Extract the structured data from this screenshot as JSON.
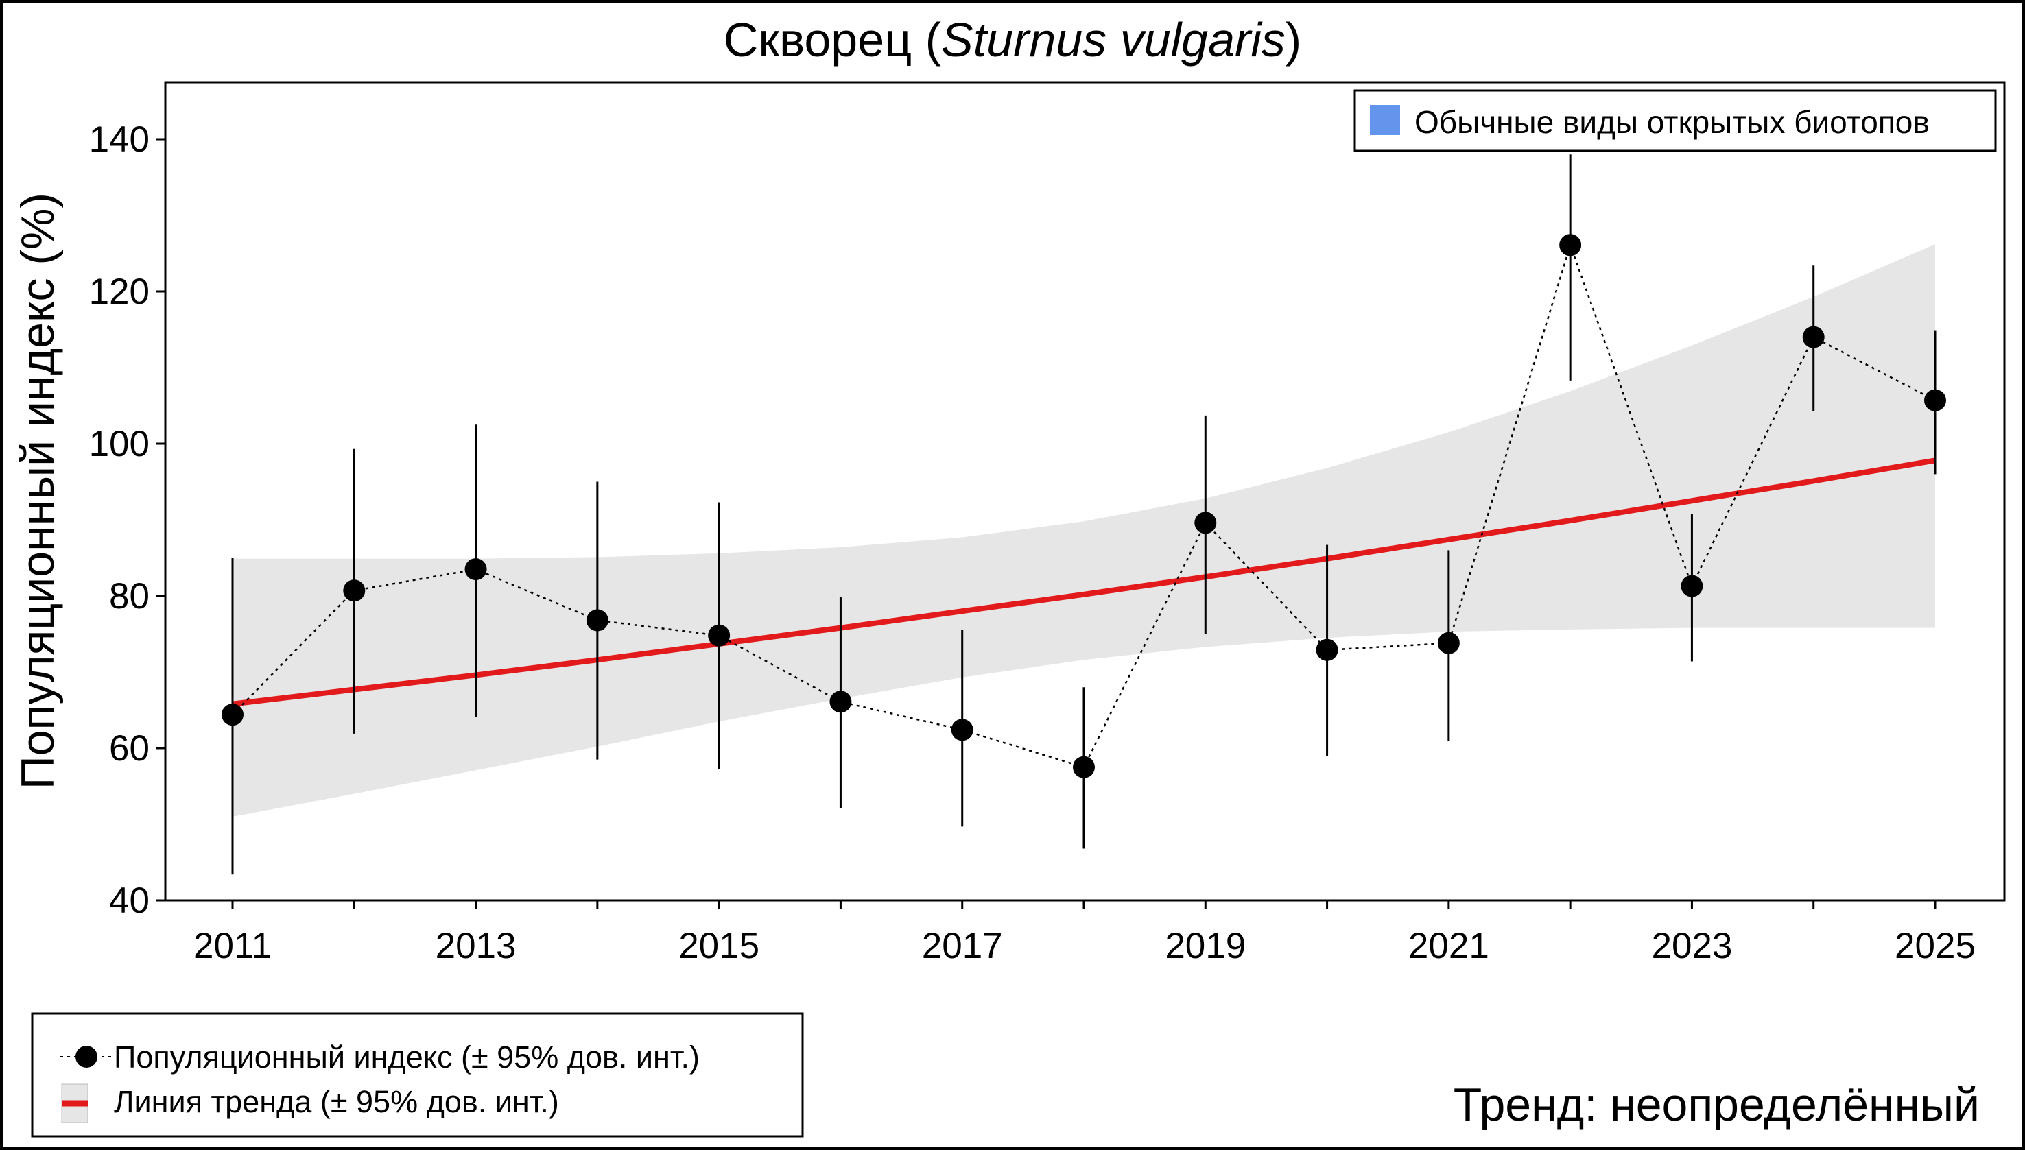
{
  "chart_data": {
    "type": "line",
    "title_main": "Скворец (",
    "title_italic": "Sturnus vulgaris",
    "title_end": ")",
    "ylabel": "Популяционный индекс (%)",
    "xlabel": "",
    "xlim": [
      2011,
      2025
    ],
    "ylim": [
      40,
      140
    ],
    "yticks": [
      40,
      60,
      80,
      100,
      120,
      140
    ],
    "xtick_labels": [
      2011,
      2013,
      2015,
      2017,
      2019,
      2021,
      2023,
      2025
    ],
    "grid": false,
    "x": [
      2011,
      2012,
      2013,
      2014,
      2015,
      2016,
      2017,
      2018,
      2019,
      2020,
      2021,
      2022,
      2023,
      2024,
      2025
    ],
    "index": [
      64.4,
      80.7,
      83.5,
      76.8,
      74.8,
      66.1,
      62.4,
      57.5,
      89.6,
      72.9,
      73.8,
      126.1,
      81.3,
      114.0,
      105.7
    ],
    "ci_upper": [
      85.0,
      99.3,
      102.5,
      95.0,
      92.3,
      79.9,
      75.5,
      68.0,
      103.7,
      86.7,
      86.0,
      138.3,
      90.8,
      123.4,
      114.9
    ],
    "ci_lower": [
      43.4,
      61.9,
      64.1,
      58.5,
      57.3,
      52.1,
      49.7,
      46.8,
      75.0,
      59.0,
      60.9,
      108.3,
      71.4,
      104.3,
      96.0
    ],
    "trend": [
      65.8,
      67.7,
      69.6,
      71.6,
      73.7,
      75.8,
      78.0,
      80.2,
      82.5,
      84.9,
      87.4,
      89.9,
      92.5,
      95.1,
      97.8
    ],
    "trend_upper": [
      84.9,
      84.9,
      84.9,
      85.1,
      85.6,
      86.4,
      87.7,
      89.8,
      92.8,
      96.8,
      101.5,
      106.9,
      112.9,
      119.3,
      126.2
    ],
    "trend_lower": [
      51.0,
      54.0,
      57.1,
      60.2,
      63.5,
      66.5,
      69.3,
      71.6,
      73.3,
      74.5,
      75.3,
      75.6,
      75.8,
      75.8,
      75.8
    ],
    "colors": {
      "index": "#000000",
      "trend": "#e31a1c",
      "band": "#e6e6e6",
      "group": "#6495ed"
    },
    "group_legend": {
      "label": "Обычные виды открытых биотопов",
      "placement": "top-right"
    },
    "legend": {
      "placement": "bottom-left",
      "entries": [
        "Популяционный индекс (± 95% дов. инт.)",
        "Линия тренда (± 95% дов. инт.)"
      ]
    },
    "annotation": "Тренд: неопределённый"
  }
}
